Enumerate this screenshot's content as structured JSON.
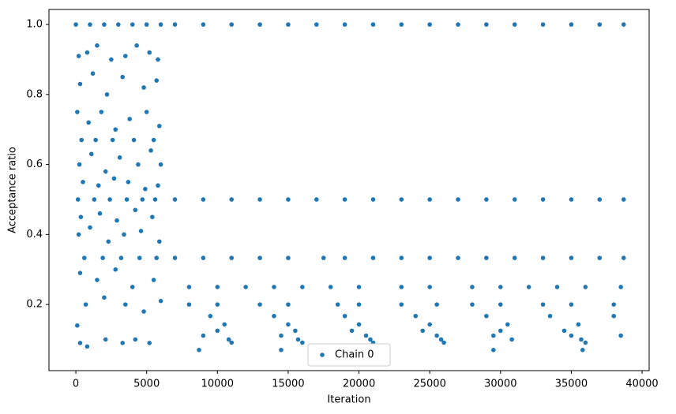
{
  "chart_data": {
    "type": "scatter",
    "x_label": "Iteration",
    "y_label": "Acceptance ratio",
    "xlim": [
      -1900,
      40500
    ],
    "ylim": [
      0.011,
      1.043
    ],
    "xticks": [
      0,
      5000,
      10000,
      15000,
      20000,
      25000,
      30000,
      35000,
      40000
    ],
    "yticks": [
      0.2,
      0.4,
      0.6,
      0.8,
      {
        "value": 1,
        "label": "1.0"
      }
    ],
    "legend": "lower center",
    "series": [
      {
        "name": "Chain 0",
        "color": "#1f77b4",
        "x": [
          0,
          1000,
          2000,
          3000,
          4000,
          5000,
          6000,
          7000,
          9000,
          11000,
          13000,
          15000,
          17000,
          19000,
          21000,
          23000,
          25000,
          27000,
          29000,
          31000,
          33000,
          35000,
          37000,
          38700,
          150,
          1300,
          2400,
          3600,
          4700,
          5600,
          7000,
          9000,
          11000,
          13000,
          15000,
          17000,
          19000,
          21000,
          23000,
          25000,
          27000,
          29000,
          31000,
          33000,
          35000,
          37000,
          38700,
          200,
          800,
          1500,
          2500,
          3500,
          4300,
          5200,
          5800,
          300,
          1200,
          2200,
          3300,
          4800,
          5700,
          100,
          900,
          1800,
          2800,
          3800,
          5000,
          5900,
          400,
          1400,
          2600,
          4100,
          5500,
          250,
          1100,
          2100,
          3100,
          4400,
          5300,
          6000,
          500,
          1600,
          2700,
          3700,
          4900,
          5800,
          350,
          1700,
          2900,
          4200,
          5400,
          200,
          1000,
          2300,
          3400,
          4600,
          5900,
          300,
          1500,
          2800,
          4000,
          5500,
          700,
          2000,
          3500,
          4800,
          6000,
          100,
          300,
          800,
          2100,
          3300,
          4200,
          5200,
          600,
          1900,
          3200,
          4500,
          5700,
          7000,
          9000,
          11000,
          13000,
          15000,
          17500,
          19000,
          21000,
          23000,
          25000,
          27000,
          29000,
          31000,
          33000,
          35000,
          37000,
          38700,
          8000,
          10000,
          12000,
          14000,
          16000,
          18000,
          20000,
          23000,
          25000,
          28000,
          30000,
          32000,
          34000,
          36000,
          38500,
          8000,
          10000,
          13000,
          15000,
          18500,
          20000,
          23000,
          25500,
          28000,
          30000,
          33000,
          35000,
          38000,
          9500,
          14000,
          19000,
          24000,
          29000,
          33500,
          38000,
          10500,
          15000,
          20000,
          25000,
          30500,
          35500,
          10000,
          15500,
          19500,
          24500,
          30000,
          34500,
          9000,
          14500,
          20500,
          25500,
          29500,
          35000,
          38500,
          10800,
          15700,
          20800,
          25800,
          30800,
          35700,
          11000,
          16000,
          21000,
          26000,
          36000,
          8700,
          14500,
          29500,
          35800
        ],
        "values": [
          1,
          1,
          1,
          1,
          1,
          1,
          1,
          1,
          1,
          1,
          1,
          1,
          1,
          1,
          1,
          1,
          1,
          1,
          1,
          1,
          1,
          1,
          1,
          1,
          0.5,
          0.5,
          0.5,
          0.5,
          0.5,
          0.5,
          0.5,
          0.5,
          0.5,
          0.5,
          0.5,
          0.5,
          0.5,
          0.5,
          0.5,
          0.5,
          0.5,
          0.5,
          0.5,
          0.5,
          0.5,
          0.5,
          0.5,
          0.91,
          0.92,
          0.94,
          0.9,
          0.91,
          0.94,
          0.92,
          0.9,
          0.83,
          0.86,
          0.8,
          0.85,
          0.82,
          0.84,
          0.75,
          0.72,
          0.75,
          0.7,
          0.73,
          0.75,
          0.71,
          0.67,
          0.67,
          0.67,
          0.67,
          0.67,
          0.6,
          0.63,
          0.58,
          0.62,
          0.6,
          0.64,
          0.6,
          0.55,
          0.54,
          0.56,
          0.55,
          0.53,
          0.54,
          0.45,
          0.46,
          0.44,
          0.47,
          0.45,
          0.4,
          0.42,
          0.38,
          0.4,
          0.41,
          0.38,
          0.29,
          0.27,
          0.3,
          0.25,
          0.27,
          0.2,
          0.22,
          0.2,
          0.18,
          0.21,
          0.14,
          0.09,
          0.08,
          0.1,
          0.09,
          0.1,
          0.09,
          0.333,
          0.333,
          0.333,
          0.333,
          0.333,
          0.333,
          0.333,
          0.333,
          0.333,
          0.333,
          0.333,
          0.333,
          0.333,
          0.333,
          0.333,
          0.333,
          0.333,
          0.333,
          0.333,
          0.333,
          0.333,
          0.333,
          0.25,
          0.25,
          0.25,
          0.25,
          0.25,
          0.25,
          0.25,
          0.25,
          0.25,
          0.25,
          0.25,
          0.25,
          0.25,
          0.25,
          0.25,
          0.2,
          0.2,
          0.2,
          0.2,
          0.2,
          0.2,
          0.2,
          0.2,
          0.2,
          0.2,
          0.2,
          0.2,
          0.2,
          0.167,
          0.167,
          0.167,
          0.167,
          0.167,
          0.167,
          0.167,
          0.143,
          0.143,
          0.143,
          0.143,
          0.143,
          0.143,
          0.125,
          0.125,
          0.125,
          0.125,
          0.125,
          0.125,
          0.111,
          0.111,
          0.111,
          0.111,
          0.111,
          0.111,
          0.111,
          0.1,
          0.1,
          0.1,
          0.1,
          0.1,
          0.1,
          0.091,
          0.091,
          0.091,
          0.091,
          0.091,
          0.07,
          0.07,
          0.07,
          0.07
        ]
      }
    ]
  }
}
